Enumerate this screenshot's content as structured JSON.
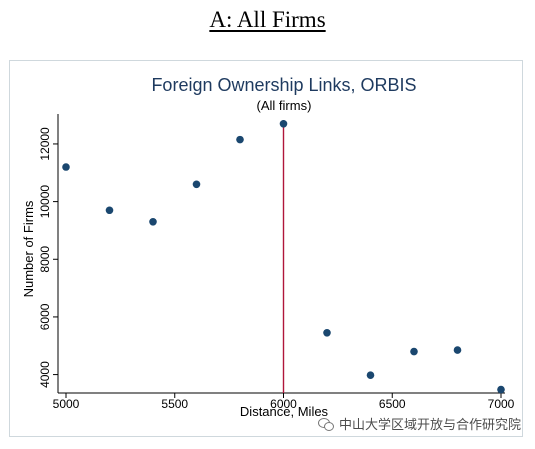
{
  "panel_title": "A: All Firms",
  "watermark": "中山大学区域开放与合作研究院",
  "chart_data": {
    "type": "scatter",
    "title": "Foreign Ownership Links, ORBIS",
    "subtitle": "(All firms)",
    "xlabel": "Distance, Miles",
    "ylabel": "Number of Firms",
    "xlim": [
      5000,
      7000
    ],
    "ylim": [
      3500,
      12900
    ],
    "x_ticks": [
      5000,
      5500,
      6000,
      6500,
      7000
    ],
    "y_ticks": [
      4000,
      6000,
      8000,
      10000,
      12000
    ],
    "x_tick_labels": [
      "5000",
      "5500",
      "6000",
      "6500",
      "7000"
    ],
    "y_tick_labels": [
      "4000",
      "6000",
      "8000",
      "10000",
      "12000"
    ],
    "grid": false,
    "vline": {
      "x": 6000,
      "color": "#b0163a"
    },
    "point_color": "#1a476f",
    "points": [
      {
        "x": 5000,
        "y": 11200
      },
      {
        "x": 5200,
        "y": 9700
      },
      {
        "x": 5400,
        "y": 9300
      },
      {
        "x": 5600,
        "y": 10600
      },
      {
        "x": 5800,
        "y": 12150
      },
      {
        "x": 6000,
        "y": 12700
      },
      {
        "x": 6200,
        "y": 5450
      },
      {
        "x": 6400,
        "y": 3980
      },
      {
        "x": 6600,
        "y": 4800
      },
      {
        "x": 6800,
        "y": 4850
      },
      {
        "x": 7000,
        "y": 3480
      }
    ]
  }
}
